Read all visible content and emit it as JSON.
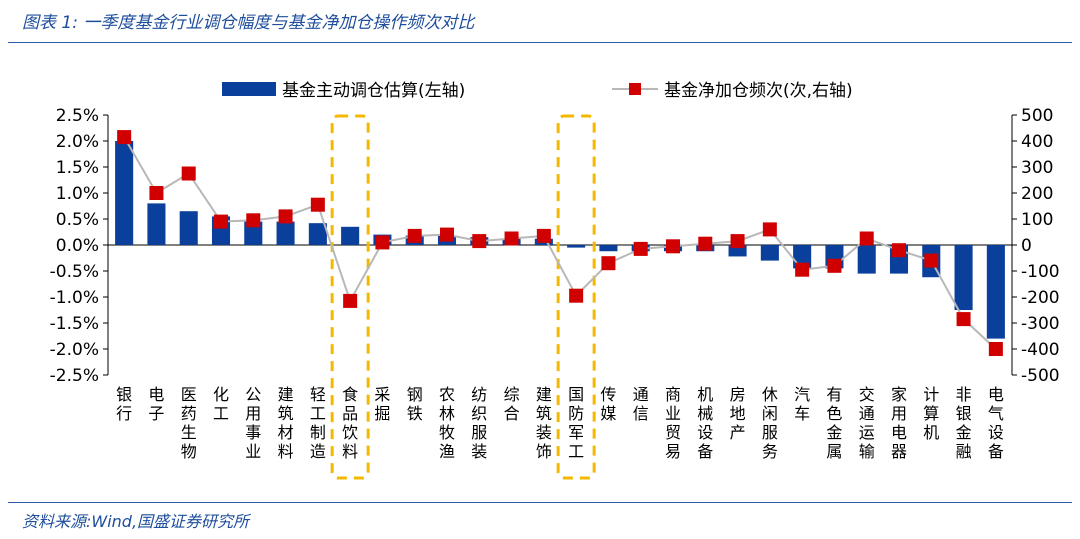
{
  "title": "图表 1:  一季度基金行业调仓幅度与基金净加仓操作频次对比",
  "source": "资料来源:Wind,国盛证券研究所",
  "colors": {
    "bar": "#0b3f9c",
    "marker": "#d00000",
    "line": "#b8b8b8",
    "highlight": "#f5b800"
  },
  "chart_data": {
    "type": "bar",
    "title": "一季度基金行业调仓幅度与基金净加仓操作频次对比",
    "categories": [
      "银行",
      "电子",
      "医药生物",
      "化工",
      "公用事业",
      "建筑材料",
      "轻工制造",
      "食品饮料",
      "采掘",
      "钢铁",
      "农林牧渔",
      "纺织服装",
      "综合",
      "建筑装饰",
      "国防军工",
      "传媒",
      "通信",
      "商业贸易",
      "机械设备",
      "房地产",
      "休闲服务",
      "汽车",
      "有色金属",
      "交通运输",
      "家用电器",
      "计算机",
      "非银金融",
      "电气设备"
    ],
    "series": [
      {
        "name": "基金主动调仓估算(左轴)",
        "type": "bar",
        "axis": "left",
        "unit": "%",
        "values": [
          2.0,
          0.8,
          0.65,
          0.55,
          0.45,
          0.45,
          0.42,
          0.35,
          0.2,
          0.18,
          0.18,
          0.15,
          0.12,
          0.12,
          -0.05,
          -0.12,
          -0.12,
          -0.12,
          -0.12,
          -0.22,
          -0.3,
          -0.45,
          -0.45,
          -0.55,
          -0.55,
          -0.62,
          -1.25,
          -1.8
        ]
      },
      {
        "name": "基金净加仓频次(次,右轴)",
        "type": "line",
        "axis": "right",
        "values": [
          415,
          200,
          275,
          90,
          95,
          110,
          155,
          -215,
          10,
          35,
          40,
          15,
          25,
          35,
          -195,
          -70,
          -15,
          -5,
          5,
          15,
          60,
          -95,
          -80,
          25,
          -20,
          -60,
          -285,
          -400
        ]
      }
    ],
    "left_axis": {
      "min": -2.5,
      "max": 2.5,
      "step": 0.5,
      "tick_labels": [
        "2.5%",
        "2.0%",
        "1.5%",
        "1.0%",
        "0.5%",
        "0.0%",
        "-0.5%",
        "-1.0%",
        "-1.5%",
        "-2.0%",
        "-2.5%"
      ]
    },
    "right_axis": {
      "min": -500,
      "max": 500,
      "step": 100,
      "tick_labels": [
        "500",
        "400",
        "300",
        "200",
        "100",
        "0",
        "-100",
        "-200",
        "-300",
        "-400",
        "-500"
      ]
    },
    "highlighted_categories": [
      "食品饮料",
      "国防军工"
    ],
    "legend": [
      {
        "label": "基金主动调仓估算(左轴)",
        "kind": "bar"
      },
      {
        "label": "基金净加仓频次(次,右轴)",
        "kind": "line-marker"
      }
    ],
    "legend_position": "top"
  }
}
